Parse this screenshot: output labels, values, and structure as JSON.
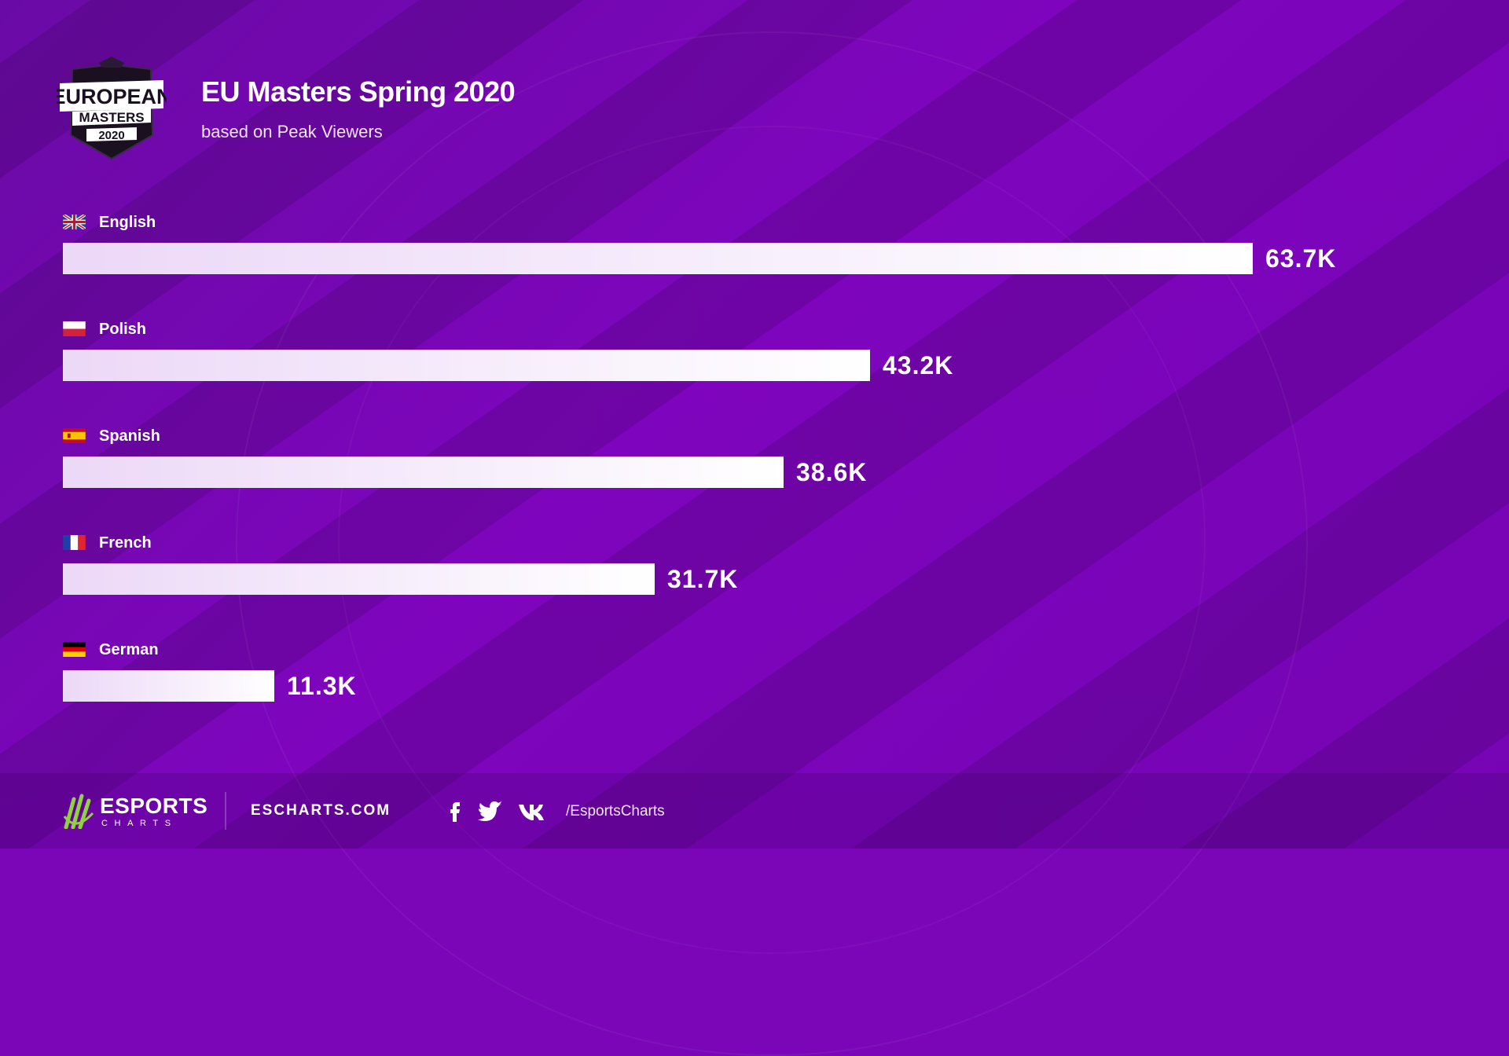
{
  "header": {
    "title": "EU Masters Spring 2020",
    "subtitle": "based on Peak Viewers",
    "logo_text_top": "EUROPEAN",
    "logo_text_mid": "MASTERS",
    "logo_text_year": "2020"
  },
  "chart_data": {
    "type": "bar",
    "orientation": "horizontal",
    "title": "EU Masters Spring 2020",
    "subtitle": "based on Peak Viewers",
    "categories": [
      "English",
      "Polish",
      "Spanish",
      "French",
      "German"
    ],
    "values": [
      63.7,
      43.2,
      38.6,
      31.7,
      11.3
    ],
    "value_labels": [
      "63.7K",
      "43.2K",
      "38.6K",
      "31.7K",
      "11.3K"
    ],
    "flags": [
      "uk-flag-icon",
      "poland-flag-icon",
      "spain-flag-icon",
      "france-flag-icon",
      "germany-flag-icon"
    ],
    "xlim": [
      0,
      63.7
    ],
    "grid": false,
    "legend": "none"
  },
  "footer": {
    "brand_name": "ESPORTS",
    "brand_sub": "CHARTS",
    "site": "ESCHARTS.COM",
    "handle": "/EsportsCharts",
    "social_icons": [
      "facebook-icon",
      "twitter-icon",
      "vk-icon"
    ]
  },
  "colors": {
    "background": "#7a06b8",
    "bar_start": "#ecd8f7",
    "bar_end": "#ffffff",
    "brand_green": "#8fd13f"
  }
}
